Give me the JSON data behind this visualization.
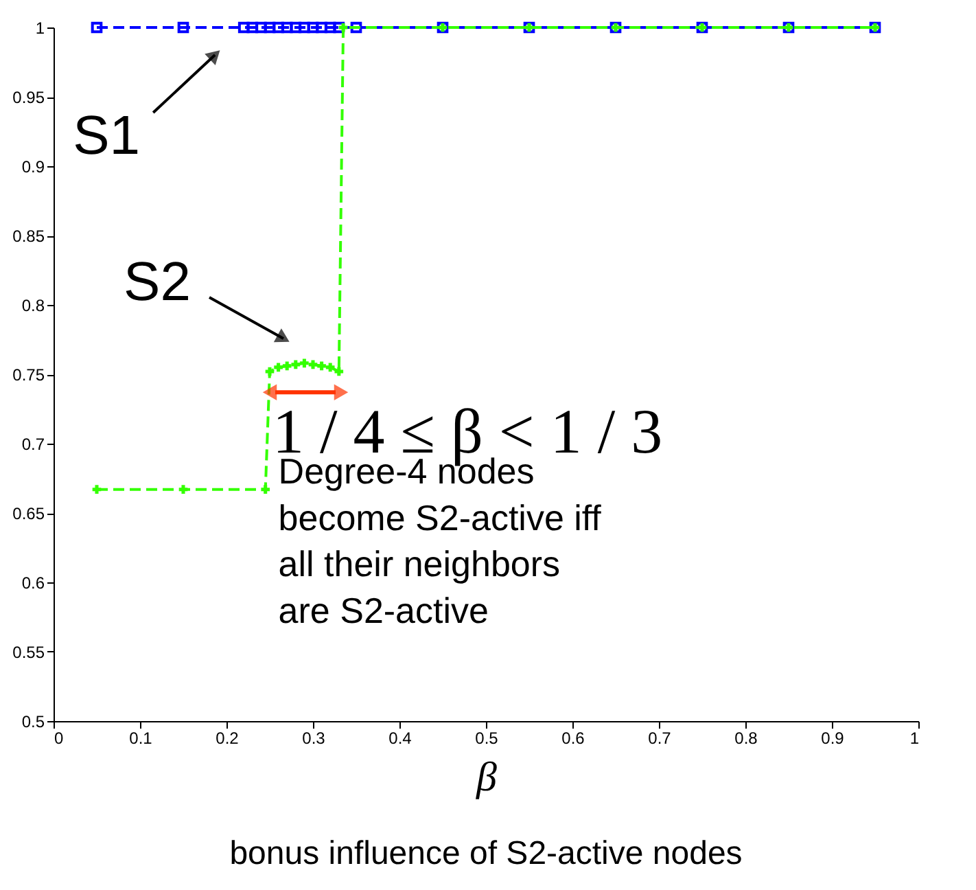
{
  "chart_data": {
    "type": "line",
    "xlabel": "β",
    "annotations": [
      {
        "text": "1 / 4 ≤ β < 1 / 3",
        "x": 0.25,
        "y": 0.737
      },
      "Degree-4 nodes\nbecome S2-active iff\nall their neighbors\nare S2-active",
      "bonus influence of S2-active nodes"
    ],
    "xlim": [
      0,
      1
    ],
    "xticks": [
      0,
      0.1,
      0.2,
      0.3,
      0.4,
      0.5,
      0.6,
      0.7,
      0.8,
      0.9,
      1
    ],
    "ylim": [
      0.5,
      1
    ],
    "yticks": [
      0.5,
      0.55,
      0.6,
      0.65,
      0.7,
      0.75,
      0.8,
      0.85,
      0.9,
      0.95,
      1
    ],
    "line_style": "dashed",
    "series": [
      {
        "name": "S1",
        "color": "#0000ff",
        "marker": "square",
        "x": [
          0.05,
          0.15,
          0.22,
          0.23,
          0.24,
          0.25,
          0.26,
          0.27,
          0.28,
          0.29,
          0.3,
          0.31,
          0.32,
          0.33,
          0.35,
          0.45,
          0.55,
          0.65,
          0.75,
          0.85,
          0.95
        ],
        "values": [
          1,
          1,
          1,
          1,
          1,
          1,
          1,
          1,
          1,
          1,
          1,
          1,
          1,
          1,
          1,
          1,
          1,
          1,
          1,
          1,
          1
        ]
      },
      {
        "name": "S2",
        "color": "#33ff00",
        "marker": "cross",
        "x": [
          0.05,
          0.15,
          0.245,
          0.25,
          0.26,
          0.27,
          0.28,
          0.29,
          0.3,
          0.31,
          0.32,
          0.33,
          0.335,
          0.45,
          0.55,
          0.65,
          0.75,
          0.85,
          0.95
        ],
        "values": [
          0.667,
          0.667,
          0.667,
          0.752,
          0.755,
          0.756,
          0.757,
          0.758,
          0.757,
          0.756,
          0.755,
          0.752,
          1,
          1,
          1,
          1,
          1,
          1,
          1
        ]
      }
    ]
  }
}
